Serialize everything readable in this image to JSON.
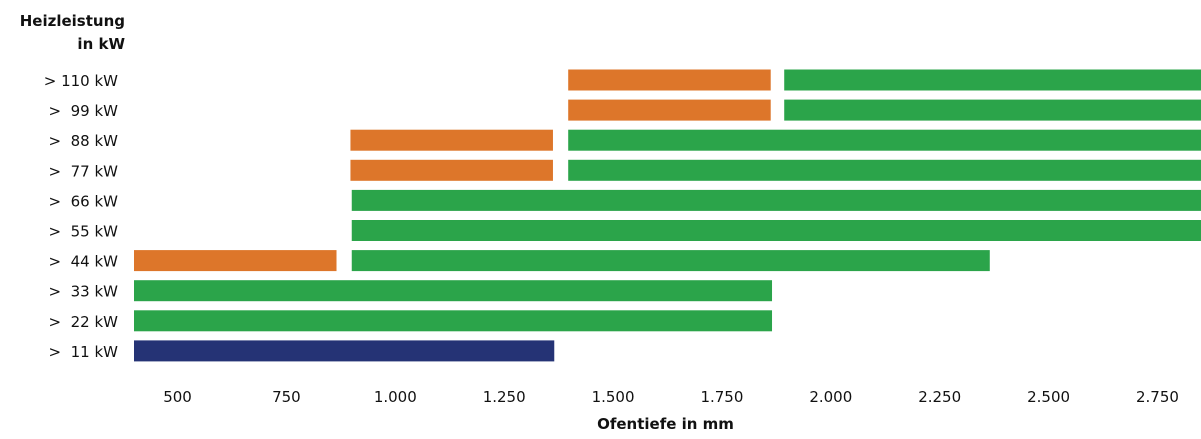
{
  "chart_data": {
    "type": "bar",
    "orientation": "horizontal-range",
    "ylabel_lines": [
      "Heizleistung",
      "in kW"
    ],
    "xlabel": "Ofentiefe in mm",
    "x_ticks": [
      "500",
      "750",
      "1.000",
      "1.250",
      "1.500",
      "1.750",
      "2.000",
      "2.250",
      "2.500",
      "2.750"
    ],
    "x_tick_values": [
      500,
      750,
      1000,
      1250,
      1500,
      1750,
      2000,
      2250,
      2500,
      2750
    ],
    "xlim": [
      400,
      2850
    ],
    "categories": [
      ">  11 kW",
      ">  22 kW",
      ">  33 kW",
      ">  44 kW",
      ">  55 kW",
      ">  66 kW",
      ">  77 kW",
      ">  88 kW",
      ">  99 kW",
      "> 110 kW"
    ],
    "colors": {
      "green": "#2ba44a",
      "orange": "#dd762a",
      "navy": "#253375"
    },
    "bars": [
      {
        "category": ">  11 kW",
        "start": 400,
        "end": 1365,
        "color": "navy"
      },
      {
        "category": ">  22 kW",
        "start": 400,
        "end": 1865,
        "color": "green"
      },
      {
        "category": ">  33 kW",
        "start": 400,
        "end": 1865,
        "color": "green"
      },
      {
        "category": ">  44 kW",
        "start": 400,
        "end": 865,
        "color": "orange"
      },
      {
        "category": ">  44 kW",
        "start": 900,
        "end": 2365,
        "color": "green"
      },
      {
        "category": ">  55 kW",
        "start": 900,
        "end": 2850,
        "color": "green"
      },
      {
        "category": ">  66 kW",
        "start": 900,
        "end": 2850,
        "color": "green"
      },
      {
        "category": ">  77 kW",
        "start": 897,
        "end": 1362,
        "color": "orange"
      },
      {
        "category": ">  77 kW",
        "start": 1397,
        "end": 2850,
        "color": "green"
      },
      {
        "category": ">  88 kW",
        "start": 897,
        "end": 1362,
        "color": "orange"
      },
      {
        "category": ">  88 kW",
        "start": 1397,
        "end": 2850,
        "color": "green"
      },
      {
        "category": ">  99 kW",
        "start": 1397,
        "end": 1862,
        "color": "orange"
      },
      {
        "category": ">  99 kW",
        "start": 1893,
        "end": 2850,
        "color": "green"
      },
      {
        "category": "> 110 kW",
        "start": 1397,
        "end": 1862,
        "color": "orange"
      },
      {
        "category": "> 110 kW",
        "start": 1893,
        "end": 2850,
        "color": "green"
      }
    ]
  }
}
